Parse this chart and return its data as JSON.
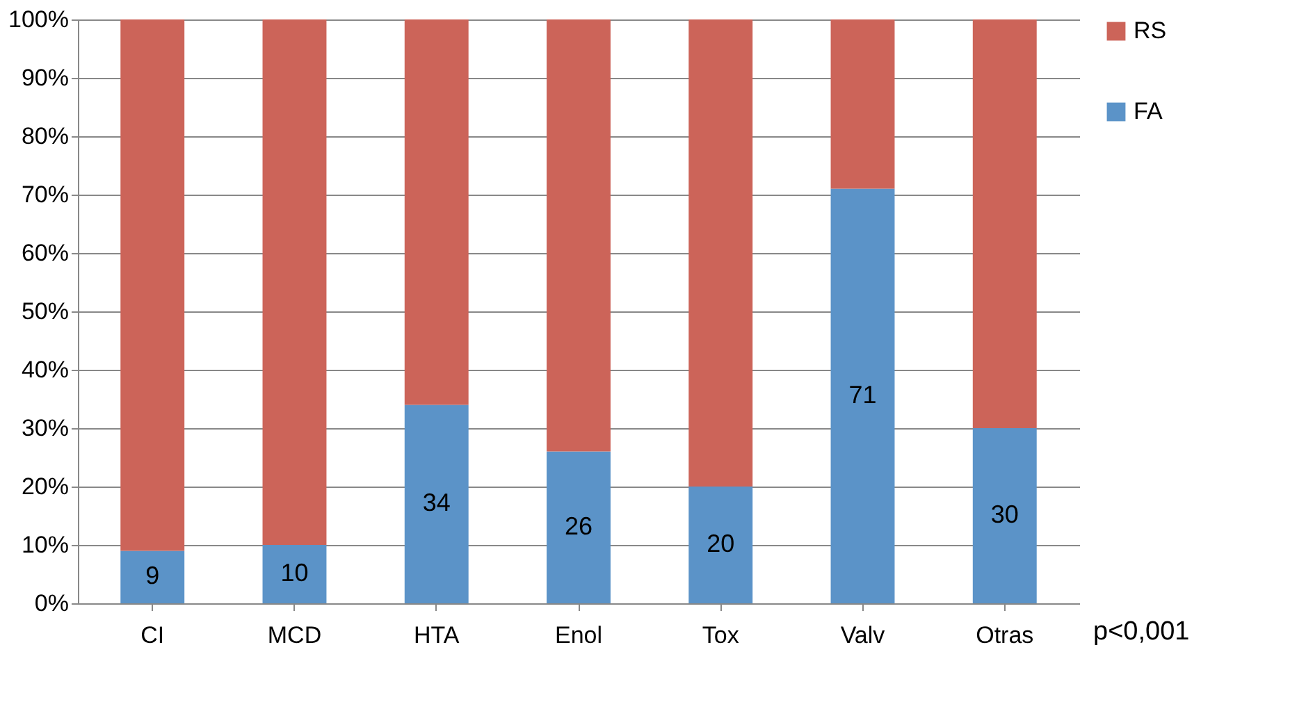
{
  "chart_data": {
    "type": "bar",
    "stacked": true,
    "categories": [
      "CI",
      "MCD",
      "HTA",
      "Enol",
      "Tox",
      "Valv",
      "Otras"
    ],
    "series": [
      {
        "name": "FA",
        "color": "#5b93c8",
        "values": [
          9,
          10,
          34,
          26,
          20,
          71,
          30
        ],
        "value_labels": [
          "9",
          "10",
          "34",
          "26",
          "20",
          "71",
          "30"
        ]
      },
      {
        "name": "RS",
        "color": "#cc6459",
        "values": [
          91,
          90,
          66,
          74,
          80,
          29,
          70
        ]
      }
    ],
    "ylim": [
      0,
      100
    ],
    "yticks": [
      {
        "value": 0,
        "label": "0%"
      },
      {
        "value": 10,
        "label": "10%"
      },
      {
        "value": 20,
        "label": "20%"
      },
      {
        "value": 30,
        "label": "30%"
      },
      {
        "value": 40,
        "label": "40%"
      },
      {
        "value": 50,
        "label": "50%"
      },
      {
        "value": 60,
        "label": "60%"
      },
      {
        "value": 70,
        "label": "70%"
      },
      {
        "value": 80,
        "label": "80%"
      },
      {
        "value": 90,
        "label": "90%"
      },
      {
        "value": 100,
        "label": "100%"
      }
    ],
    "grid": "y",
    "legend": "right",
    "annotations": [
      "p<0,001"
    ]
  }
}
